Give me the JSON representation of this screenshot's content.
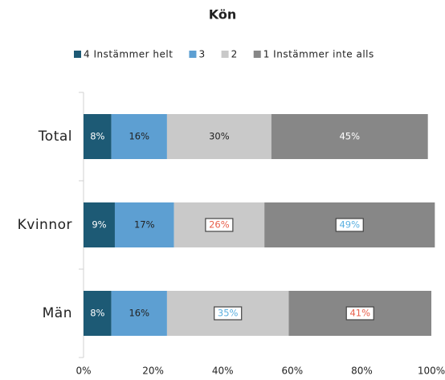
{
  "chart_data": {
    "type": "stacked_bar_horizontal",
    "title": "Kön",
    "categories": [
      "Total",
      "Kvinnor",
      "Män"
    ],
    "series": [
      {
        "name": "4 Instämmer helt",
        "color": "#1d5a75",
        "values": [
          8,
          9,
          8
        ],
        "value_labels": [
          "8%",
          "9%",
          "8%"
        ],
        "label_color": "#ffffff"
      },
      {
        "name": "3",
        "color": "#5d9fd2",
        "values": [
          16,
          17,
          16
        ],
        "value_labels": [
          "16%",
          "17%",
          "16%"
        ],
        "label_color": "#222222"
      },
      {
        "name": "2",
        "color": "#c9c9c9",
        "values": [
          30,
          26,
          35
        ],
        "value_labels": [
          "30%",
          "26%",
          "35%"
        ],
        "label_color": "#222222",
        "label_boxes": [
          null,
          "#e8604c",
          "#5bb0e0"
        ]
      },
      {
        "name": "1 Instämmer inte alls",
        "color": "#878787",
        "values": [
          45,
          49,
          41
        ],
        "value_labels": [
          "45%",
          "49%",
          "41%"
        ],
        "label_color": "#ffffff",
        "label_boxes": [
          null,
          "#5bb0e0",
          "#e8604c"
        ]
      }
    ],
    "xlim": [
      0,
      100
    ],
    "xticks": [
      {
        "value": 0,
        "label": "0%"
      },
      {
        "value": 20,
        "label": "20%"
      },
      {
        "value": 40,
        "label": "40%"
      },
      {
        "value": 60,
        "label": "60%"
      },
      {
        "value": 80,
        "label": "80%"
      },
      {
        "value": 100,
        "label": "100%"
      }
    ],
    "legend": "top"
  }
}
